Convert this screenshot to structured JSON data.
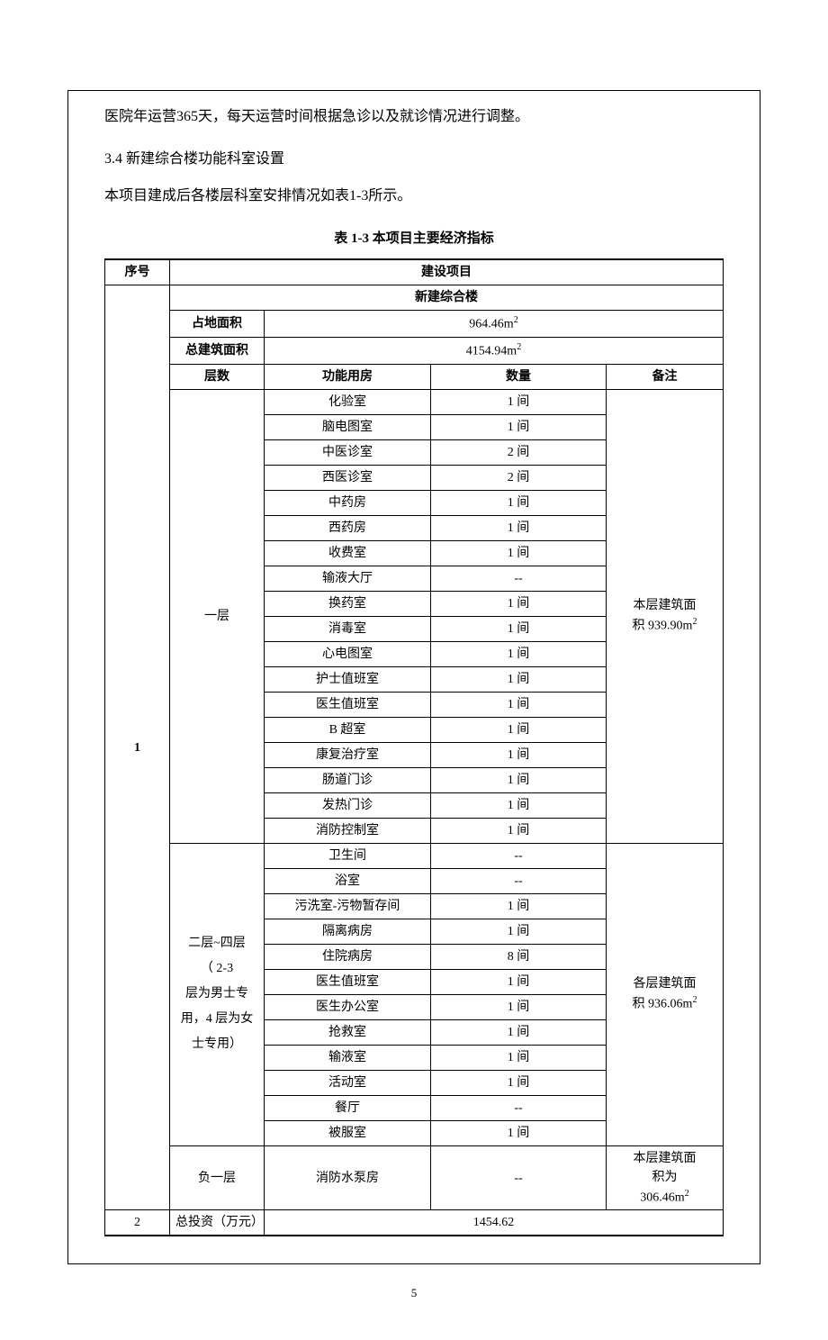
{
  "paragraphs": {
    "p1": "医院年运营365天，每天运营时间根据急诊以及就诊情况进行调整。",
    "heading": "3.4  新建综合楼功能科室设置",
    "p2": "本项目建成后各楼层科室安排情况如表1-3所示。"
  },
  "table": {
    "caption": "表 1-3   本项目主要经济指标",
    "headers": {
      "seq": "序号",
      "project": "建设项目"
    },
    "subHeader": "新建综合楼",
    "landArea": {
      "label": "占地面积",
      "value": "964.46m",
      "sup": "2"
    },
    "buildArea": {
      "label": "总建筑面积",
      "value": "4154.94m",
      "sup": "2"
    },
    "colHeaders": {
      "floor": "层数",
      "room": "功能用房",
      "qty": "数量",
      "note": "备注"
    },
    "seq1": "1",
    "seq2": "2",
    "floor1": {
      "label": "一层",
      "note_line1": "本层建筑面",
      "note_line2": "积 939.90m",
      "note_sup": "2",
      "rooms": [
        {
          "name": "化验室",
          "qty": "1 间"
        },
        {
          "name": "脑电图室",
          "qty": "1 间"
        },
        {
          "name": "中医诊室",
          "qty": "2 间"
        },
        {
          "name": "西医诊室",
          "qty": "2 间"
        },
        {
          "name": "中药房",
          "qty": "1 间"
        },
        {
          "name": "西药房",
          "qty": "1 间"
        },
        {
          "name": "收费室",
          "qty": "1 间"
        },
        {
          "name": "输液大厅",
          "qty": "--"
        },
        {
          "name": "换药室",
          "qty": "1 间"
        },
        {
          "name": "消毒室",
          "qty": "1 间"
        },
        {
          "name": "心电图室",
          "qty": "1 间"
        },
        {
          "name": "护士值班室",
          "qty": "1 间"
        },
        {
          "name": "医生值班室",
          "qty": "1 间"
        },
        {
          "name": "B 超室",
          "qty": "1 间"
        },
        {
          "name": "康复治疗室",
          "qty": "1 间"
        },
        {
          "name": "肠道门诊",
          "qty": "1 间"
        },
        {
          "name": "发热门诊",
          "qty": "1 间"
        },
        {
          "name": "消防控制室",
          "qty": "1 间"
        }
      ]
    },
    "floor2to4": {
      "label_l1": "二层~四层",
      "label_l2": "（ 2-3",
      "label_l3": "层为男士专",
      "label_l4": "用，4 层为女",
      "label_l5": "士专用）",
      "note_line1": "各层建筑面",
      "note_line2": "积 936.06m",
      "note_sup": "2",
      "rooms": [
        {
          "name": "卫生间",
          "qty": "--"
        },
        {
          "name": "浴室",
          "qty": "--"
        },
        {
          "name": "污洗室-污物暂存间",
          "qty": "1 间"
        },
        {
          "name": "隔离病房",
          "qty": "1 间"
        },
        {
          "name": "住院病房",
          "qty": "8 间"
        },
        {
          "name": "医生值班室",
          "qty": "1 间"
        },
        {
          "name": "医生办公室",
          "qty": "1 间"
        },
        {
          "name": "抢救室",
          "qty": "1 间"
        },
        {
          "name": "输液室",
          "qty": "1 间"
        },
        {
          "name": "活动室",
          "qty": "1 间"
        },
        {
          "name": "餐厅",
          "qty": "--"
        },
        {
          "name": "被服室",
          "qty": "1 间"
        }
      ]
    },
    "basement": {
      "label": "负一层",
      "room": "消防水泵房",
      "qty": "--",
      "note_l1": "本层建筑面",
      "note_l2": "积为",
      "note_l3": "306.46m",
      "note_sup": "2"
    },
    "investment": {
      "label": "总投资（万元）",
      "value": "1454.62"
    }
  },
  "pageNumber": "5"
}
